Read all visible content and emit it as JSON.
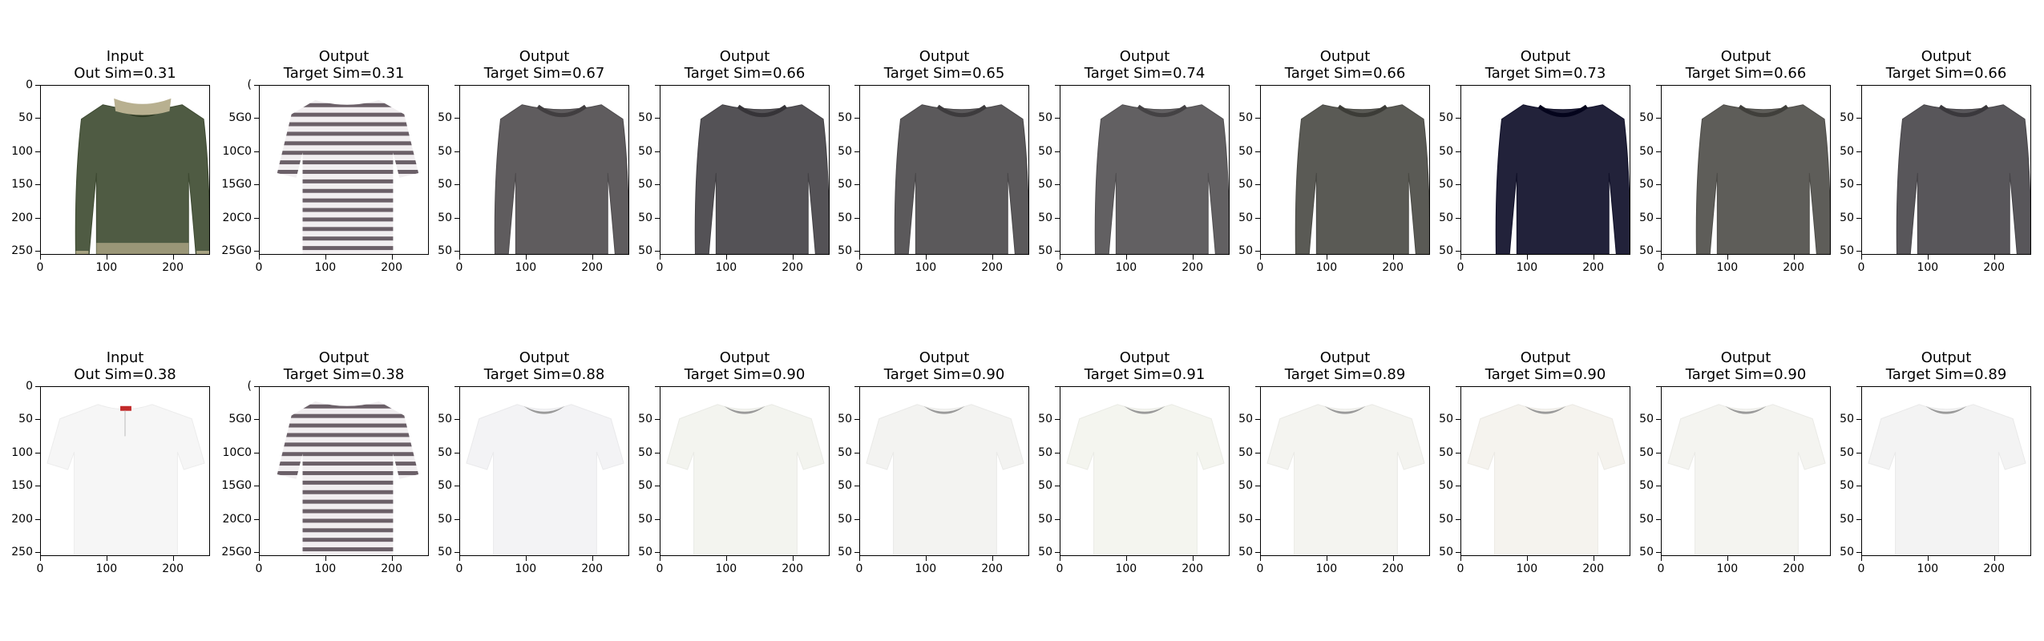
{
  "figure": {
    "rows": [
      {
        "panels": [
          {
            "title": "Input",
            "subtitle": "Out Sim=0.31",
            "image": "green-long-sleeve-top-lace-trim",
            "color": "#4f5b43",
            "kind": "input-long"
          },
          {
            "title": "Output",
            "subtitle": "Target Sim=0.31",
            "image": "striped-short-sleeve-shirt",
            "color": "#6b6068",
            "kind": "striped"
          },
          {
            "title": "Output",
            "subtitle": "Target Sim=0.67",
            "image": "gray-long-sleeve-top",
            "color": "#5f5c5e",
            "kind": "long"
          },
          {
            "title": "Output",
            "subtitle": "Target Sim=0.66",
            "image": "gray-long-sleeve-top",
            "color": "#545256",
            "kind": "long"
          },
          {
            "title": "Output",
            "subtitle": "Target Sim=0.65",
            "image": "gray-long-sleeve-top",
            "color": "#5b595b",
            "kind": "long"
          },
          {
            "title": "Output",
            "subtitle": "Target Sim=0.74",
            "image": "gray-long-sleeve-top",
            "color": "#626062",
            "kind": "long"
          },
          {
            "title": "Output",
            "subtitle": "Target Sim=0.66",
            "image": "gray-long-sleeve-top",
            "color": "#5a5a55",
            "kind": "long"
          },
          {
            "title": "Output",
            "subtitle": "Target Sim=0.73",
            "image": "navy-long-sleeve-top",
            "color": "#22223a",
            "kind": "long"
          },
          {
            "title": "Output",
            "subtitle": "Target Sim=0.66",
            "image": "gray-long-sleeve-top",
            "color": "#5e5d59",
            "kind": "long"
          },
          {
            "title": "Output",
            "subtitle": "Target Sim=0.66",
            "image": "gray-long-sleeve-top",
            "color": "#58565a",
            "kind": "long"
          }
        ]
      },
      {
        "panels": [
          {
            "title": "Input",
            "subtitle": "Out Sim=0.38",
            "image": "white-short-sleeve-blouse",
            "color": "#f6f6f6",
            "kind": "input-tee"
          },
          {
            "title": "Output",
            "subtitle": "Target Sim=0.38",
            "image": "striped-short-sleeve-shirt",
            "color": "#6b6068",
            "kind": "striped"
          },
          {
            "title": "Output",
            "subtitle": "Target Sim=0.88",
            "image": "white-short-sleeve-tshirt",
            "color": "#f3f3f5",
            "kind": "tee"
          },
          {
            "title": "Output",
            "subtitle": "Target Sim=0.90",
            "image": "white-short-sleeve-tshirt",
            "color": "#f3f4ef",
            "kind": "tee"
          },
          {
            "title": "Output",
            "subtitle": "Target Sim=0.90",
            "image": "white-short-sleeve-tshirt",
            "color": "#f3f3f1",
            "kind": "tee"
          },
          {
            "title": "Output",
            "subtitle": "Target Sim=0.91",
            "image": "white-short-sleeve-tshirt",
            "color": "#f4f5ef",
            "kind": "tee"
          },
          {
            "title": "Output",
            "subtitle": "Target Sim=0.89",
            "image": "white-short-sleeve-tshirt",
            "color": "#f4f4f0",
            "kind": "tee"
          },
          {
            "title": "Output",
            "subtitle": "Target Sim=0.90",
            "image": "white-short-sleeve-tshirt",
            "color": "#f5f3ee",
            "kind": "tee"
          },
          {
            "title": "Output",
            "subtitle": "Target Sim=0.90",
            "image": "white-short-sleeve-tshirt",
            "color": "#f4f4f0",
            "kind": "tee"
          },
          {
            "title": "Output",
            "subtitle": "Target Sim=0.89",
            "image": "white-short-sleeve-tshirt",
            "color": "#f3f3f3",
            "kind": "tee"
          }
        ]
      }
    ],
    "axes": {
      "x_range": [
        0,
        256
      ],
      "y_range": [
        0,
        256
      ],
      "x_ticks": [
        0,
        100,
        200
      ],
      "y_ticks": [
        0,
        50,
        100,
        150,
        200,
        250
      ],
      "y_tick_labels": {
        "first": [
          "0",
          "50",
          "100",
          "150",
          "200",
          "250"
        ],
        "second": [
          "(",
          "5G0",
          "10C0",
          "15G0",
          "20C0",
          "25G0"
        ],
        "other": [
          "",
          "50",
          "50",
          "50",
          "50",
          "50"
        ]
      }
    }
  }
}
